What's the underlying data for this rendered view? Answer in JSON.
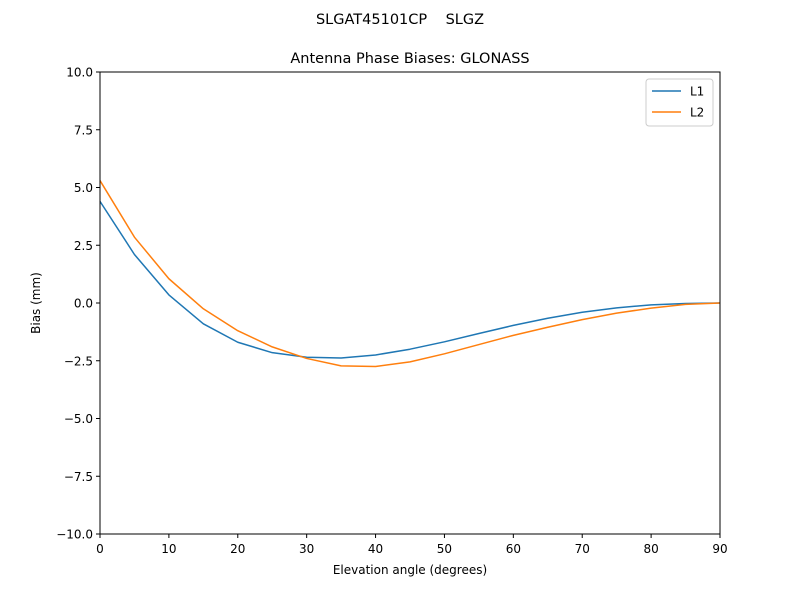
{
  "chart_data": {
    "type": "line",
    "suptitle": "SLGAT45101CP    SLGZ",
    "title": "Antenna Phase Biases: GLONASS",
    "xlabel": "Elevation angle (degrees)",
    "ylabel": "Bias (mm)",
    "xlim": [
      0,
      90
    ],
    "ylim": [
      -10,
      10
    ],
    "xticks": [
      0,
      10,
      20,
      30,
      40,
      50,
      60,
      70,
      80,
      90
    ],
    "xtick_labels": [
      "0",
      "10",
      "20",
      "30",
      "40",
      "50",
      "60",
      "70",
      "80",
      "90"
    ],
    "yticks": [
      10,
      7.5,
      5,
      2.5,
      0,
      -2.5,
      -5,
      -7.5,
      -10
    ],
    "ytick_labels": [
      "10.0",
      "7.5",
      "5.0",
      "2.5",
      "0.0",
      "−2.5",
      "−5.0",
      "−7.5",
      "−10.0"
    ],
    "grid": false,
    "legend_position": "top-right",
    "x": [
      0,
      5,
      10,
      15,
      20,
      25,
      30,
      35,
      40,
      45,
      50,
      55,
      60,
      65,
      70,
      75,
      80,
      85,
      90
    ],
    "series": [
      {
        "name": "L1",
        "color": "#1f77b4",
        "values": [
          4.4,
          2.1,
          0.35,
          -0.9,
          -1.7,
          -2.15,
          -2.35,
          -2.38,
          -2.25,
          -2.0,
          -1.68,
          -1.32,
          -0.97,
          -0.66,
          -0.4,
          -0.21,
          -0.08,
          -0.02,
          0.0
        ]
      },
      {
        "name": "L2",
        "color": "#ff7f0e",
        "values": [
          5.3,
          2.85,
          1.05,
          -0.25,
          -1.2,
          -1.9,
          -2.4,
          -2.72,
          -2.75,
          -2.55,
          -2.2,
          -1.8,
          -1.4,
          -1.05,
          -0.72,
          -0.44,
          -0.22,
          -0.06,
          0.0
        ]
      }
    ]
  }
}
